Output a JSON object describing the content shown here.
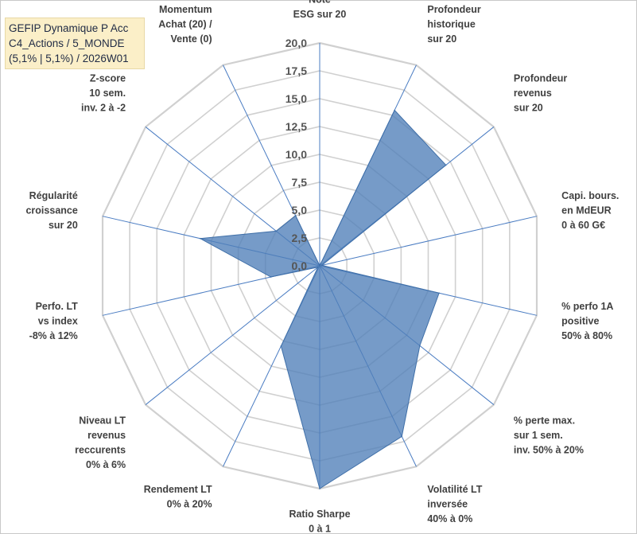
{
  "chart_data": {
    "type": "radar",
    "title_box": [
      "GEFIP Dynamique P Acc",
      "C4_Actions / 5_MONDE",
      "(5,1% | 5,1%) / 2026W01"
    ],
    "scale": {
      "min": 0,
      "max": 20,
      "step": 2.5
    },
    "tick_labels": [
      "0,0",
      "2,5",
      "5,0",
      "7,5",
      "10,0",
      "12,5",
      "15,0",
      "17,5",
      "20,0"
    ],
    "axes": [
      {
        "label": [
          "Note",
          "ESG sur 20"
        ],
        "value": 0
      },
      {
        "label": [
          "Profondeur",
          "historique",
          "sur 20"
        ],
        "value": 15.5
      },
      {
        "label": [
          "Profondeur",
          "revenus",
          "sur 20"
        ],
        "value": 14.5
      },
      {
        "label": [
          "Capi. bours.",
          "en MdEUR",
          "0 à 60 G€"
        ],
        "value": 0.2
      },
      {
        "label": [
          "% perfo 1A",
          "positive",
          "50% à 80%"
        ],
        "value": 11
      },
      {
        "label": [
          "% perte max.",
          "sur 1 sem.",
          "inv. 50% à 20%"
        ],
        "value": 11.5
      },
      {
        "label": [
          "Volatilité LT",
          "inversée",
          "40% à 0%"
        ],
        "value": 17
      },
      {
        "label": [
          "Ratio Sharpe",
          "0 à 1"
        ],
        "value": 20
      },
      {
        "label": [
          "Rendement LT",
          "0% à 20%"
        ],
        "value": 8
      },
      {
        "label": [
          "Niveau LT",
          "revenus",
          "reccurents",
          "0% à 6%"
        ],
        "value": 0.2
      },
      {
        "label": [
          "Perfo. LT",
          "vs index",
          "-8% à 12%"
        ],
        "value": 4.5
      },
      {
        "label": [
          "Régularité",
          "croissance",
          "sur 20"
        ],
        "value": 11
      },
      {
        "label": [
          "Z-score",
          "10 sem.",
          "inv. 2 à -2"
        ],
        "value": 5
      },
      {
        "label": [
          "Momentum",
          "Achat (20) /",
          "Vente (0)"
        ],
        "value": 5
      }
    ],
    "colors": {
      "fill": "#4f7fb8",
      "fill_opacity": 0.78,
      "stroke": "#3f6fa8",
      "grid": "#d0d0d0",
      "spoke": "#4a7cc2",
      "title_bg": "#fbefc8"
    },
    "grid": true,
    "legend": "none"
  }
}
